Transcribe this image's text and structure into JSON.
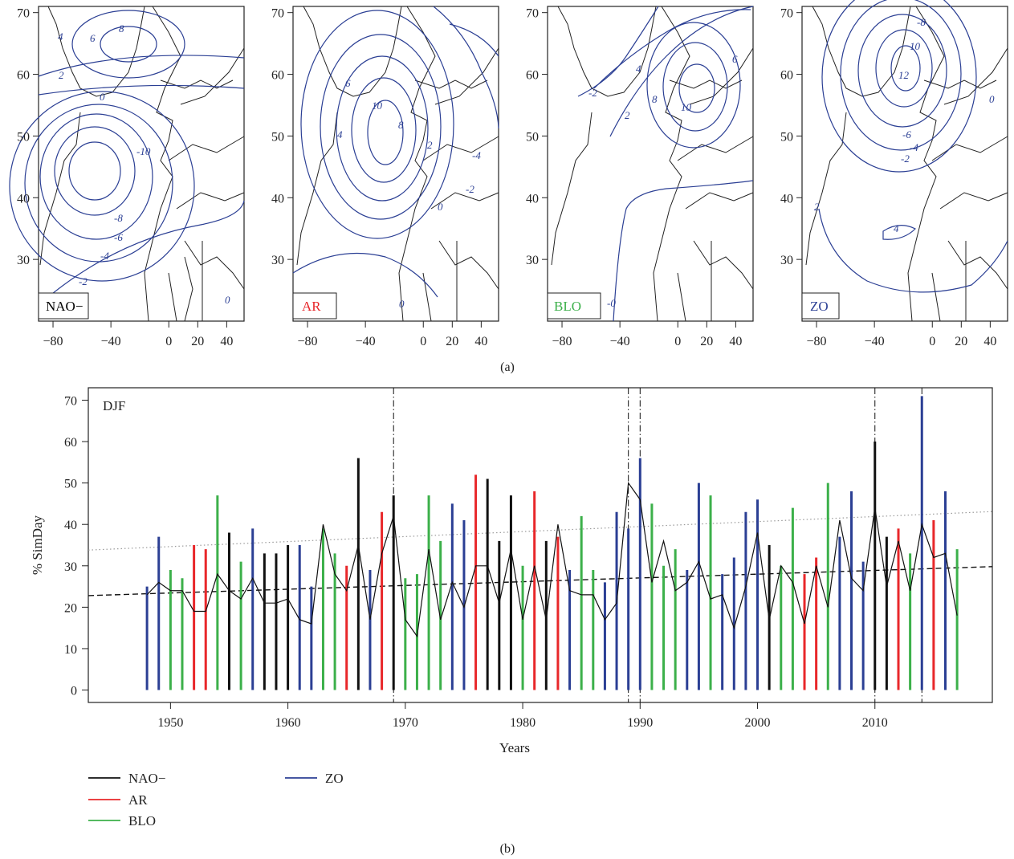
{
  "panel_a": {
    "caption": "(a)",
    "x_ticks": [
      -80,
      -40,
      0,
      20,
      40
    ],
    "y_ticks": [
      30,
      40,
      50,
      60,
      70
    ],
    "maps": [
      {
        "label": "NAO−",
        "label_color": "#111111",
        "contour_labels": [
          "6",
          "4",
          "8",
          "2",
          "0",
          "-10",
          "-8",
          "-6",
          "-4",
          "-2",
          "0"
        ]
      },
      {
        "label": "AR",
        "label_color": "#e8272a",
        "contour_labels": [
          "6",
          "10",
          "8",
          "4",
          "2",
          "0",
          "-2",
          "-4",
          "0"
        ]
      },
      {
        "label": "BLO",
        "label_color": "#3cb04a",
        "contour_labels": [
          "-2",
          "4",
          "8",
          "2",
          "10",
          "6",
          "-0"
        ]
      },
      {
        "label": "ZO",
        "label_color": "#2b3f94",
        "contour_labels": [
          "-8",
          "10",
          "12",
          "-6",
          "-4",
          "-2",
          "0",
          "4",
          "2"
        ]
      }
    ],
    "contour_color": "#2b3f94"
  },
  "panel_b": {
    "caption": "(b)",
    "season_label": "DJF",
    "legend": [
      {
        "name": "NAO−",
        "color": "#111111"
      },
      {
        "name": "AR",
        "color": "#e8272a"
      },
      {
        "name": "BLO",
        "color": "#3cb04a"
      },
      {
        "name": "ZO",
        "color": "#2b3f94"
      }
    ]
  },
  "chart_data": {
    "type": "bar",
    "title": "",
    "xlabel": "Years",
    "ylabel": "% SimDay",
    "xlim": [
      1943,
      2020
    ],
    "ylim": [
      -3,
      73
    ],
    "x_ticks": [
      1950,
      1960,
      1970,
      1980,
      1990,
      2000,
      2010
    ],
    "y_ticks": [
      0,
      10,
      20,
      30,
      40,
      50,
      60,
      70
    ],
    "colors": {
      "NAO−": "#111111",
      "AR": "#e8272a",
      "BLO": "#3cb04a",
      "ZO": "#2b3f94"
    },
    "bars": [
      {
        "year": 1948,
        "regime": "ZO",
        "value": 25
      },
      {
        "year": 1949,
        "regime": "ZO",
        "value": 37
      },
      {
        "year": 1950,
        "regime": "BLO",
        "value": 29
      },
      {
        "year": 1951,
        "regime": "BLO",
        "value": 27
      },
      {
        "year": 1952,
        "regime": "AR",
        "value": 35
      },
      {
        "year": 1953,
        "regime": "AR",
        "value": 34
      },
      {
        "year": 1954,
        "regime": "BLO",
        "value": 47
      },
      {
        "year": 1955,
        "regime": "NAO−",
        "value": 38
      },
      {
        "year": 1956,
        "regime": "BLO",
        "value": 31
      },
      {
        "year": 1957,
        "regime": "ZO",
        "value": 39
      },
      {
        "year": 1958,
        "regime": "NAO−",
        "value": 33
      },
      {
        "year": 1959,
        "regime": "NAO−",
        "value": 33
      },
      {
        "year": 1960,
        "regime": "NAO−",
        "value": 35
      },
      {
        "year": 1961,
        "regime": "ZO",
        "value": 35
      },
      {
        "year": 1962,
        "regime": "ZO",
        "value": 25
      },
      {
        "year": 1963,
        "regime": "BLO",
        "value": 39
      },
      {
        "year": 1964,
        "regime": "BLO",
        "value": 33
      },
      {
        "year": 1965,
        "regime": "AR",
        "value": 30
      },
      {
        "year": 1966,
        "regime": "NAO−",
        "value": 56
      },
      {
        "year": 1967,
        "regime": "ZO",
        "value": 29
      },
      {
        "year": 1968,
        "regime": "AR",
        "value": 43
      },
      {
        "year": 1969,
        "regime": "NAO−",
        "value": 47
      },
      {
        "year": 1970,
        "regime": "BLO",
        "value": 27
      },
      {
        "year": 1971,
        "regime": "BLO",
        "value": 28
      },
      {
        "year": 1972,
        "regime": "BLO",
        "value": 47
      },
      {
        "year": 1973,
        "regime": "BLO",
        "value": 36
      },
      {
        "year": 1974,
        "regime": "ZO",
        "value": 45
      },
      {
        "year": 1975,
        "regime": "ZO",
        "value": 41
      },
      {
        "year": 1976,
        "regime": "AR",
        "value": 52
      },
      {
        "year": 1977,
        "regime": "NAO−",
        "value": 51
      },
      {
        "year": 1978,
        "regime": "NAO−",
        "value": 36
      },
      {
        "year": 1979,
        "regime": "NAO−",
        "value": 47
      },
      {
        "year": 1980,
        "regime": "BLO",
        "value": 30
      },
      {
        "year": 1981,
        "regime": "AR",
        "value": 48
      },
      {
        "year": 1982,
        "regime": "NAO−",
        "value": 36
      },
      {
        "year": 1983,
        "regime": "AR",
        "value": 37
      },
      {
        "year": 1984,
        "regime": "ZO",
        "value": 29
      },
      {
        "year": 1985,
        "regime": "BLO",
        "value": 42
      },
      {
        "year": 1986,
        "regime": "BLO",
        "value": 29
      },
      {
        "year": 1987,
        "regime": "ZO",
        "value": 26
      },
      {
        "year": 1988,
        "regime": "ZO",
        "value": 43
      },
      {
        "year": 1989,
        "regime": "ZO",
        "value": 39
      },
      {
        "year": 1990,
        "regime": "ZO",
        "value": 56
      },
      {
        "year": 1991,
        "regime": "BLO",
        "value": 45
      },
      {
        "year": 1992,
        "regime": "BLO",
        "value": 30
      },
      {
        "year": 1993,
        "regime": "BLO",
        "value": 34
      },
      {
        "year": 1994,
        "regime": "ZO",
        "value": 29
      },
      {
        "year": 1995,
        "regime": "ZO",
        "value": 50
      },
      {
        "year": 1996,
        "regime": "BLO",
        "value": 47
      },
      {
        "year": 1997,
        "regime": "ZO",
        "value": 28
      },
      {
        "year": 1998,
        "regime": "ZO",
        "value": 32
      },
      {
        "year": 1999,
        "regime": "ZO",
        "value": 43
      },
      {
        "year": 2000,
        "regime": "ZO",
        "value": 46
      },
      {
        "year": 2001,
        "regime": "NAO−",
        "value": 35
      },
      {
        "year": 2002,
        "regime": "BLO",
        "value": 30
      },
      {
        "year": 2003,
        "regime": "BLO",
        "value": 44
      },
      {
        "year": 2004,
        "regime": "AR",
        "value": 28
      },
      {
        "year": 2005,
        "regime": "AR",
        "value": 32
      },
      {
        "year": 2006,
        "regime": "BLO",
        "value": 50
      },
      {
        "year": 2007,
        "regime": "ZO",
        "value": 37
      },
      {
        "year": 2008,
        "regime": "ZO",
        "value": 48
      },
      {
        "year": 2009,
        "regime": "ZO",
        "value": 31
      },
      {
        "year": 2010,
        "regime": "NAO−",
        "value": 60
      },
      {
        "year": 2011,
        "regime": "NAO−",
        "value": 37
      },
      {
        "year": 2012,
        "regime": "AR",
        "value": 39
      },
      {
        "year": 2013,
        "regime": "BLO",
        "value": 33
      },
      {
        "year": 2014,
        "regime": "ZO",
        "value": 71
      },
      {
        "year": 2015,
        "regime": "AR",
        "value": 41
      },
      {
        "year": 2016,
        "regime": "ZO",
        "value": 48
      },
      {
        "year": 2017,
        "regime": "BLO",
        "value": 34
      }
    ],
    "line": {
      "name": "",
      "color": "#111111",
      "x": [
        1948,
        1949,
        1950,
        1951,
        1952,
        1953,
        1954,
        1955,
        1956,
        1957,
        1958,
        1959,
        1960,
        1961,
        1962,
        1963,
        1964,
        1965,
        1966,
        1967,
        1968,
        1969,
        1970,
        1971,
        1972,
        1973,
        1974,
        1975,
        1976,
        1977,
        1978,
        1979,
        1980,
        1981,
        1982,
        1983,
        1984,
        1985,
        1986,
        1987,
        1988,
        1989,
        1990,
        1991,
        1992,
        1993,
        1994,
        1995,
        1996,
        1997,
        1998,
        1999,
        2000,
        2001,
        2002,
        2003,
        2004,
        2005,
        2006,
        2007,
        2008,
        2009,
        2010,
        2011,
        2012,
        2013,
        2014,
        2015,
        2016,
        2017
      ],
      "y": [
        23,
        26,
        24,
        24,
        19,
        19,
        28,
        24,
        22,
        27,
        21,
        21,
        22,
        17,
        16,
        40,
        28,
        24,
        35,
        17,
        33,
        42,
        17,
        13,
        34,
        17,
        26,
        20,
        30,
        30,
        21,
        34,
        17,
        30,
        17,
        40,
        24,
        23,
        23,
        17,
        21,
        50,
        46,
        26,
        36,
        24,
        26,
        31,
        22,
        23,
        15,
        25,
        38,
        17,
        30,
        26,
        16,
        30,
        20,
        41,
        27,
        24,
        44,
        25,
        36,
        24,
        40,
        32,
        33,
        18
      ]
    },
    "trend_black": {
      "style": "dashed",
      "x": [
        1943,
        2020
      ],
      "y": [
        22.8,
        29.8
      ]
    },
    "trend_gray": {
      "style": "dotted",
      "x": [
        1943,
        2020
      ],
      "y": [
        33.8,
        43.1
      ]
    },
    "vlines": [
      1969,
      1989,
      1990,
      2010,
      2014
    ]
  }
}
